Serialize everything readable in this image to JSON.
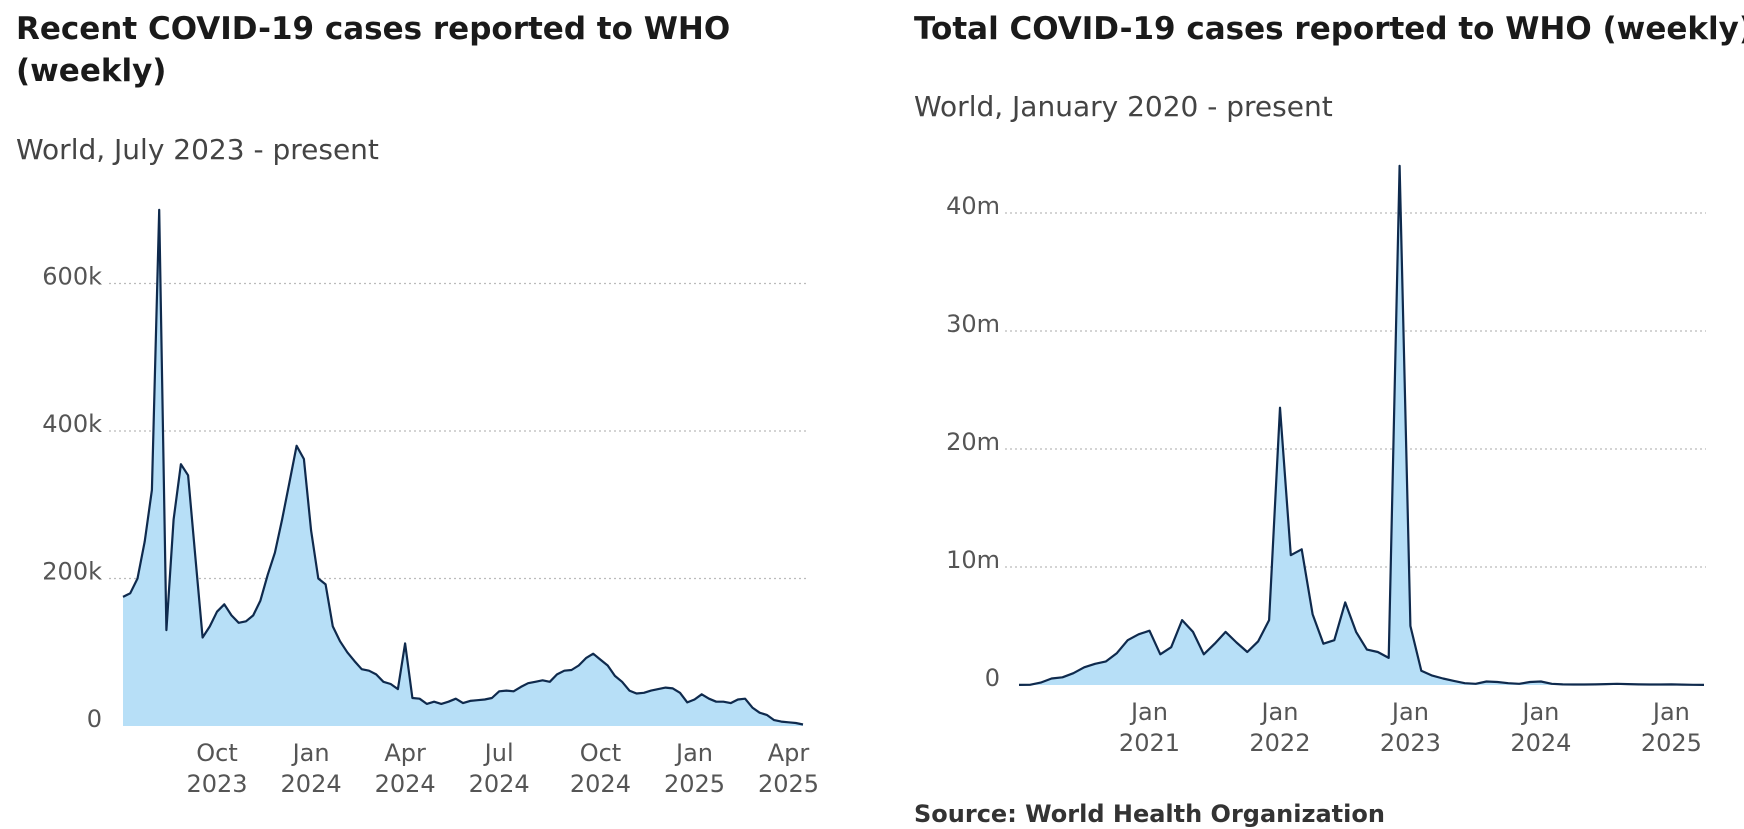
{
  "chart_data": [
    {
      "type": "area",
      "title": "Recent COVID-19 cases reported to WHO (weekly)",
      "subtitle": "World, July 2023 - present",
      "categories": [
        null,
        null,
        null,
        null,
        null,
        null,
        null,
        null,
        null,
        null,
        null,
        null,
        null,
        "Oct 2023",
        null,
        null,
        null,
        null,
        null,
        null,
        null,
        null,
        null,
        null,
        null,
        null,
        "Jan 2024",
        null,
        null,
        null,
        null,
        null,
        null,
        null,
        null,
        null,
        null,
        null,
        null,
        "Apr 2024",
        null,
        null,
        null,
        null,
        null,
        null,
        null,
        null,
        null,
        null,
        null,
        null,
        "Jul 2024",
        null,
        null,
        null,
        null,
        null,
        null,
        null,
        null,
        null,
        null,
        null,
        null,
        null,
        "Oct 2024",
        null,
        null,
        null,
        null,
        null,
        null,
        null,
        null,
        null,
        null,
        null,
        null,
        "Jan 2025",
        null,
        null,
        null,
        null,
        null,
        null,
        null,
        null,
        null,
        null,
        null,
        null,
        "Apr 2025",
        null,
        null
      ],
      "values": [
        175000,
        180000,
        200000,
        250000,
        320000,
        700000,
        130000,
        280000,
        355000,
        340000,
        230000,
        120000,
        135000,
        155000,
        165000,
        150000,
        140000,
        142000,
        150000,
        170000,
        205000,
        235000,
        280000,
        330000,
        380000,
        362000,
        265000,
        200000,
        192000,
        135000,
        115000,
        100000,
        88000,
        77000,
        75000,
        70000,
        60000,
        57000,
        50000,
        112000,
        38000,
        37000,
        30000,
        33000,
        30000,
        33000,
        37000,
        31000,
        34000,
        35000,
        36000,
        38000,
        47000,
        48000,
        47000,
        53000,
        58000,
        60000,
        62000,
        60000,
        70000,
        75000,
        76000,
        82000,
        92000,
        98000,
        90000,
        82000,
        68000,
        60000,
        48000,
        44000,
        45000,
        48000,
        50000,
        52000,
        51000,
        45000,
        32000,
        36000,
        43000,
        37000,
        33000,
        33000,
        31000,
        36000,
        37000,
        25000,
        18000,
        15000,
        8000,
        6000,
        5000,
        4000,
        2000
      ],
      "color": "#b7dff7",
      "line_color": "#0f2a4d",
      "ylim": [
        0,
        720000
      ],
      "yticks": [
        0,
        {
          "value": 200000,
          "label": "200k"
        },
        {
          "value": 400000,
          "label": "400k"
        },
        {
          "value": 600000,
          "label": "600k"
        }
      ],
      "grid": true
    },
    {
      "type": "area",
      "title": "Total COVID-19 cases reported to WHO (weekly)",
      "subtitle": "World, January 2020 - present",
      "source": "Source: World Health Organization",
      "categories": [
        null,
        null,
        null,
        null,
        null,
        null,
        null,
        null,
        null,
        null,
        null,
        null,
        "Jan 2021",
        null,
        null,
        null,
        null,
        null,
        null,
        null,
        null,
        null,
        null,
        null,
        "Jan 2022",
        null,
        null,
        null,
        null,
        null,
        null,
        null,
        null,
        null,
        null,
        null,
        "Jan 2023",
        null,
        null,
        null,
        null,
        null,
        null,
        null,
        null,
        null,
        null,
        null,
        "Jan 2024",
        null,
        null,
        null,
        null,
        null,
        null,
        null,
        null,
        null,
        null,
        null,
        "Jan 2025",
        null,
        null,
        null
      ],
      "values": [
        10000,
        20000,
        200000,
        550000,
        650000,
        1000000,
        1500000,
        1800000,
        2000000,
        2700000,
        3800000,
        4300000,
        4600000,
        2600000,
        3200000,
        5500000,
        4500000,
        2600000,
        3500000,
        4500000,
        3600000,
        2800000,
        3700000,
        5500000,
        23500000,
        11000000,
        11500000,
        6000000,
        3500000,
        3800000,
        7000000,
        4500000,
        3000000,
        2800000,
        2300000,
        44000000,
        5000000,
        1200000,
        800000,
        550000,
        350000,
        150000,
        100000,
        300000,
        250000,
        150000,
        100000,
        250000,
        300000,
        100000,
        50000,
        40000,
        40000,
        50000,
        80000,
        100000,
        80000,
        50000,
        40000,
        40000,
        50000,
        30000,
        20000,
        10000
      ],
      "color": "#b7dff7",
      "line_color": "#0f2a4d",
      "ylim": [
        0,
        45000000
      ],
      "yticks": [
        0,
        {
          "value": 10000000,
          "label": "10m"
        },
        {
          "value": 20000000,
          "label": "20m"
        },
        {
          "value": 30000000,
          "label": "30m"
        },
        {
          "value": 40000000,
          "label": "40m"
        }
      ],
      "grid": true
    }
  ]
}
